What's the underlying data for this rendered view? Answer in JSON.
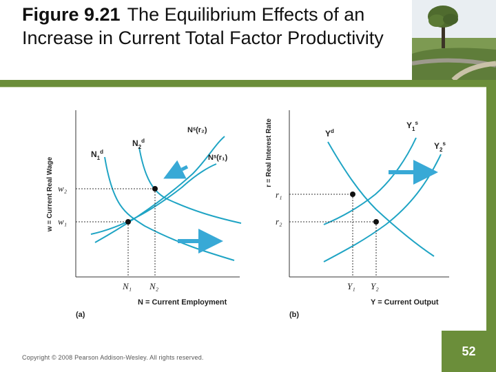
{
  "slide": {
    "figure_number": "Figure 9.21",
    "title": "The Equilibrium Effects of an Increase in Current Total Factor Productivity",
    "copyright": "Copyright © 2008 Pearson Addison-Wesley. All rights reserved.",
    "page_number": "52"
  },
  "panel_a": {
    "y_axis_label": "w = Current Real Wage",
    "x_axis_label": "N = Current Employment",
    "panel_label": "(a)",
    "curve_demand_1": "N",
    "curve_demand_1_sup": "d",
    "curve_demand_1_sub": "1",
    "curve_demand_2": "N",
    "curve_demand_2_sup": "d",
    "curve_demand_2_sub": "2",
    "curve_supply_r2": "Nˢ(r₂)",
    "curve_supply_r1": "Nˢ(r₁)",
    "y_tick_w2": "w₂",
    "y_tick_w1": "w₁",
    "x_tick_n1": "N₁",
    "x_tick_n2": "N₂"
  },
  "panel_b": {
    "y_axis_label": "r = Real Interest Rate",
    "x_axis_label": "Y = Current Output",
    "panel_label": "(b)",
    "curve_demand": "Y",
    "curve_demand_sup": "d",
    "curve_supply_1": "Y",
    "curve_supply_1_sup": "s",
    "curve_supply_1_sub": "1",
    "curve_supply_2": "Y",
    "curve_supply_2_sup": "s",
    "curve_supply_2_sub": "2",
    "y_tick_r1": "r₁",
    "y_tick_r2": "r₂",
    "x_tick_y1": "Y₁",
    "x_tick_y2": "Y₂"
  },
  "colors": {
    "accent_green": "#6b8e3a",
    "curve_teal": "#1fa4c4",
    "arrow_teal": "#38a9d6"
  }
}
